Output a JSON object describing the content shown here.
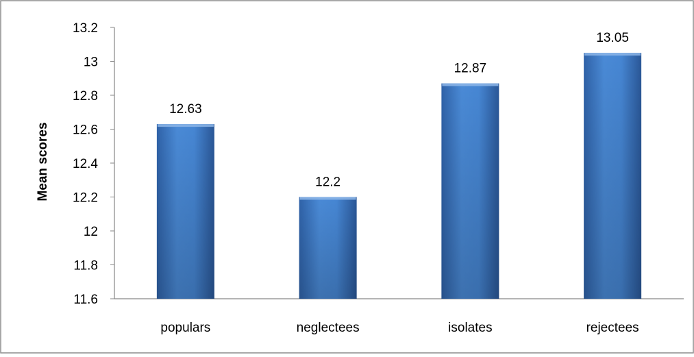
{
  "chart_data": {
    "type": "bar",
    "title": "",
    "xlabel": "",
    "ylabel": "Mean scores",
    "ylim": [
      11.6,
      13.2
    ],
    "ytick_step": 0.2,
    "yticks": [
      "11.6",
      "11.8",
      "12",
      "12.2",
      "12.4",
      "12.6",
      "12.8",
      "13",
      "13.2"
    ],
    "categories": [
      "populars",
      "neglectees",
      "isolates",
      "rejectees"
    ],
    "values": [
      12.63,
      12.2,
      12.87,
      13.05
    ],
    "data_labels": [
      "12.63",
      "12.2",
      "12.87",
      "13.05"
    ],
    "grid": false,
    "legend": "none",
    "bar_color": "#3E7BC4"
  }
}
